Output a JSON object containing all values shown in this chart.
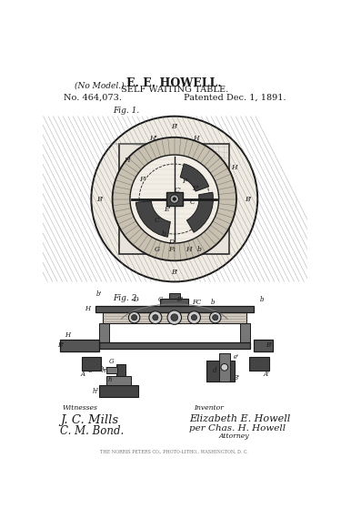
{
  "title_line1": "E. E. HOWELL.",
  "title_line2": "SELF WAITING TABLE.",
  "patent_no": "No. 464,073.",
  "patent_date": "Patented Dec. 1, 1891.",
  "no_model": "(No Model.)",
  "bg_color": "#ffffff",
  "line_color": "#1a1a1a",
  "gray1": "#aaaaaa",
  "gray2": "#777777",
  "gray3": "#444444",
  "gray_fill": "#cccccc",
  "dark_fill": "#555555",
  "hatch_color": "#999999"
}
